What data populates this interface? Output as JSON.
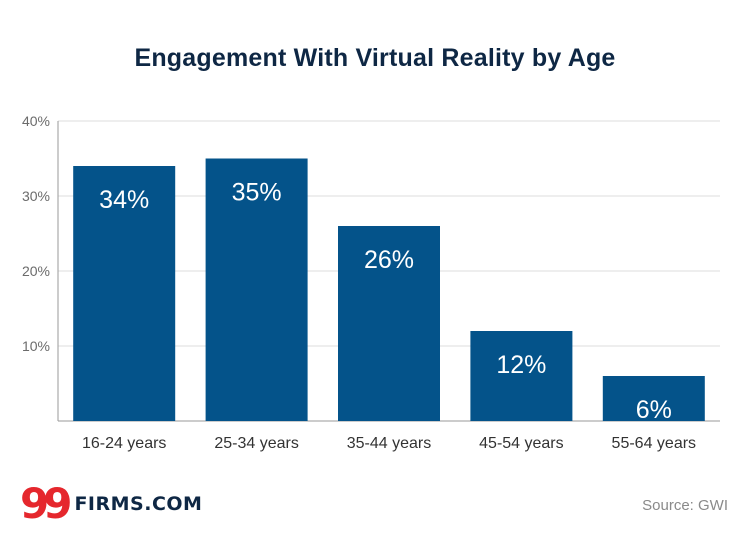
{
  "chart_data": {
    "type": "bar",
    "title": "Engagement With Virtual Reality by Age",
    "categories": [
      "16-24 years",
      "25-34 years",
      "35-44 years",
      "45-54 years",
      "55-64 years"
    ],
    "values": [
      34,
      35,
      26,
      12,
      6
    ],
    "value_labels": [
      "34%",
      "35%",
      "26%",
      "12%",
      "6%"
    ],
    "ylim": [
      0,
      40
    ],
    "yticks": [
      10,
      20,
      30,
      40
    ],
    "ytick_labels": [
      "10%",
      "20%",
      "30%",
      "40%"
    ],
    "xlabel": "",
    "ylabel": "",
    "grid": true
  },
  "colors": {
    "bar": "#04538a",
    "title": "#0e2744",
    "brand_red": "#e5272d"
  },
  "footer": {
    "logo_mark": "99",
    "logo_text": "FIRMS.COM",
    "source": "Source: GWI"
  }
}
